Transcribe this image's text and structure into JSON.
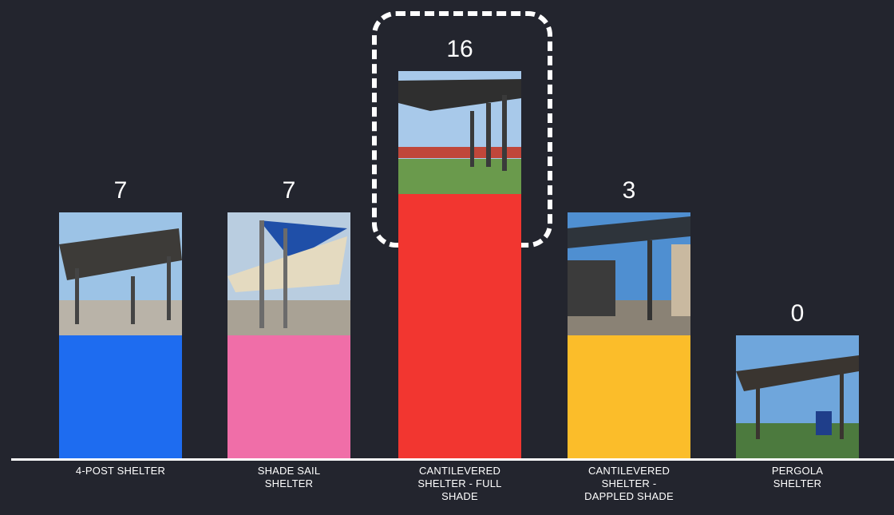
{
  "chart_data": {
    "type": "bar",
    "categories": [
      "4-POST SHELTER",
      "SHADE SAIL SHELTER",
      "CANTILEVERED SHELTER - FULL SHADE",
      "CANTILEVERED SHELTER - DAPPLED SHADE",
      "PERGOLA SHELTER"
    ],
    "values": [
      7,
      7,
      16,
      3,
      0
    ],
    "value_labels": [
      "7",
      "7",
      "16",
      "3",
      "0"
    ],
    "colors": [
      "#1e6cf0",
      "#f06ea8",
      "#f23630",
      "#fbbd2a",
      "#1e6cf0"
    ],
    "ylim": [
      0,
      16
    ],
    "grid": false,
    "legend": "none",
    "highlighted_category": "CANTILEVERED SHELTER - FULL SHADE"
  },
  "icons": [
    "four-post-shelter-photo-icon",
    "shade-sail-shelter-photo-icon",
    "cantilevered-full-shade-photo-icon",
    "cantilevered-dappled-shade-photo-icon",
    "pergola-shelter-photo-icon"
  ]
}
